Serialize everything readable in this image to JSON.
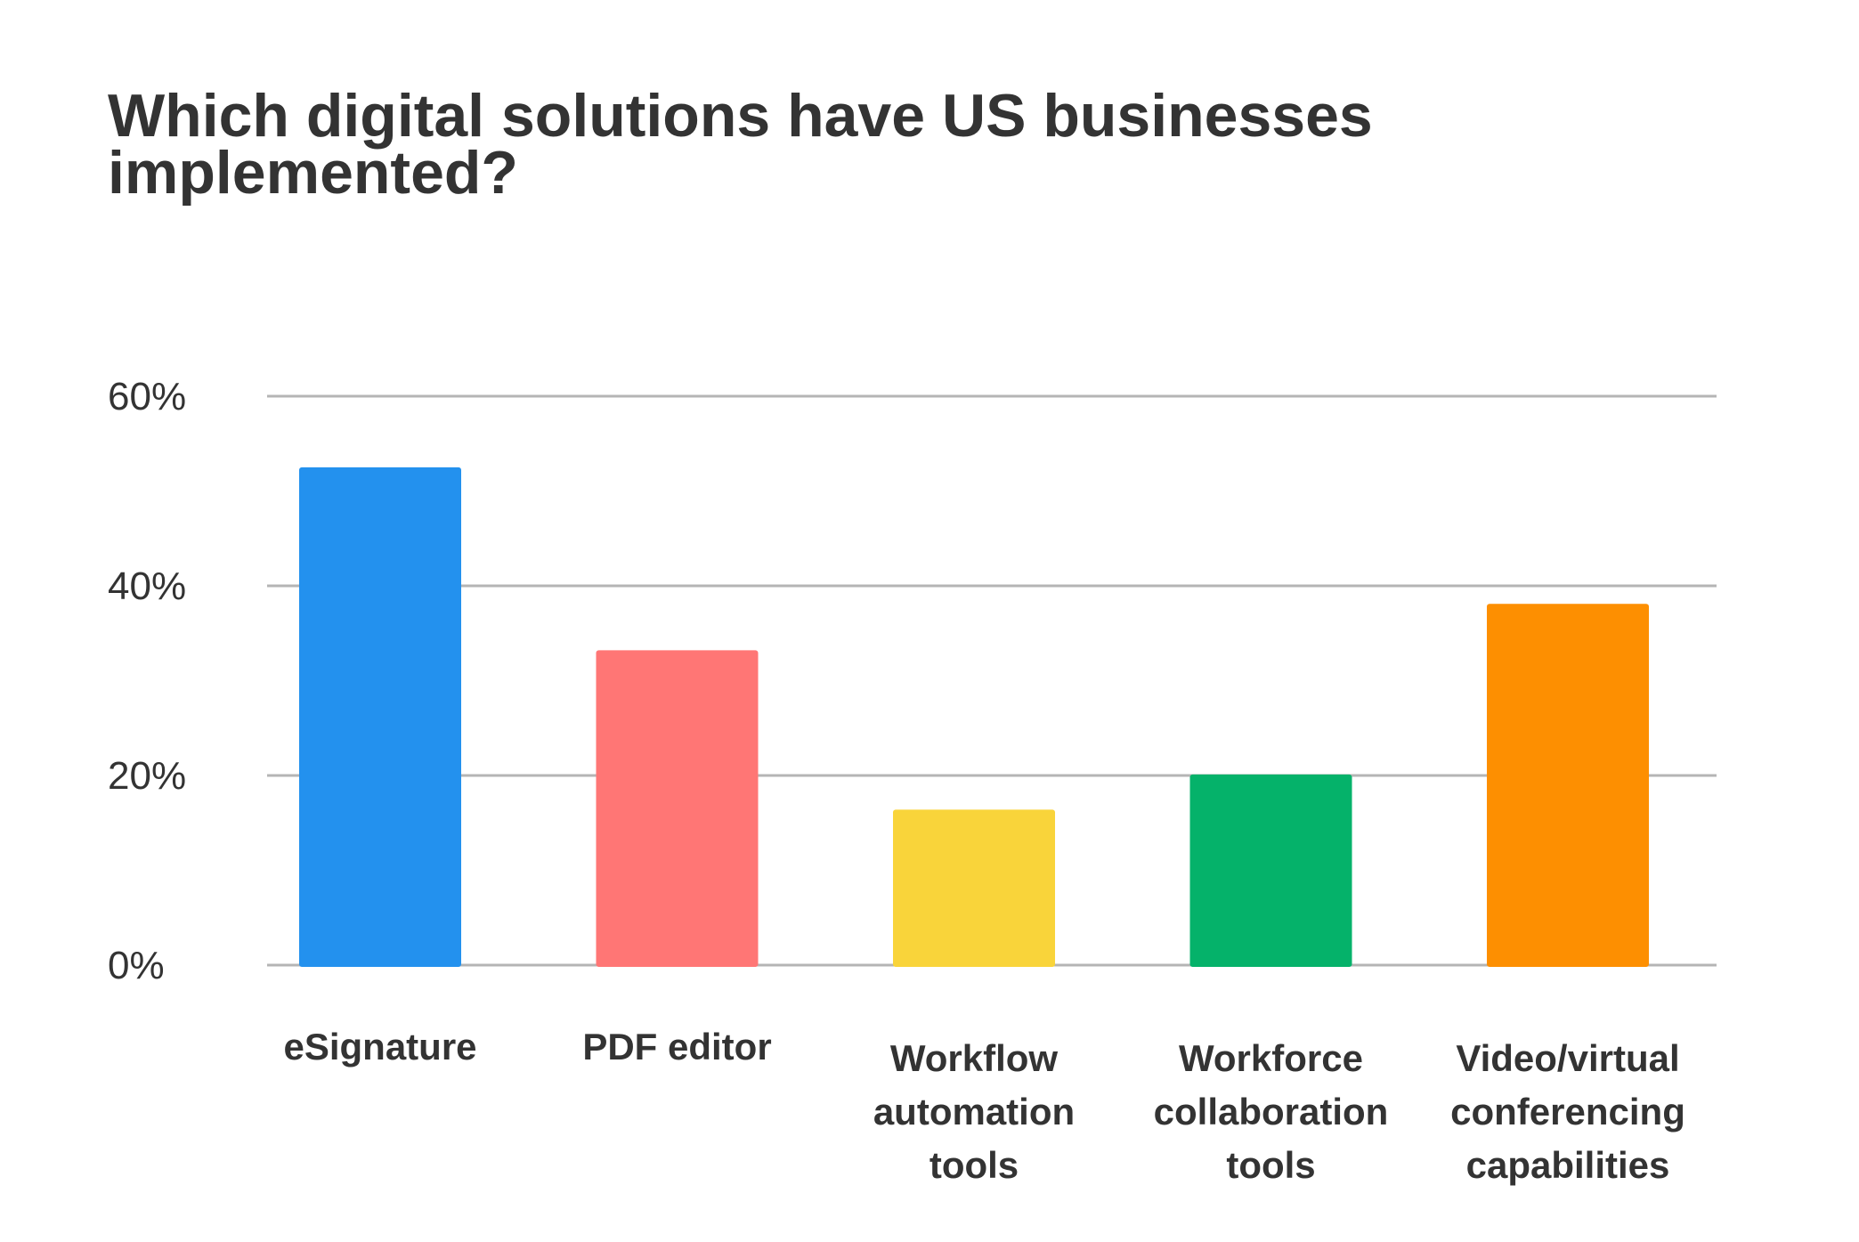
{
  "chart_data": {
    "type": "bar",
    "title": "Which digital solutions have US businesses implemented?",
    "xlabel": "",
    "ylabel": "",
    "categories": [
      [
        "eSignature"
      ],
      [
        "PDF editor"
      ],
      [
        "Workflow",
        "automation",
        "tools"
      ],
      [
        "Workforce",
        "collaboration",
        "tools"
      ],
      [
        "Video/virtual",
        "conferencing",
        "capabilities"
      ]
    ],
    "values": [
      52.5,
      33.2,
      16.4,
      20.1,
      38.1
    ],
    "colors": [
      "#2391EE",
      "#FF7675",
      "#F9D43A",
      "#05B26A",
      "#FD8F01"
    ],
    "ylim": [
      0,
      60
    ],
    "yticks": [
      0,
      20,
      40,
      60
    ],
    "ytick_labels": [
      "0%",
      "20%",
      "40%",
      "60%"
    ],
    "grid": true,
    "legend": "none"
  }
}
